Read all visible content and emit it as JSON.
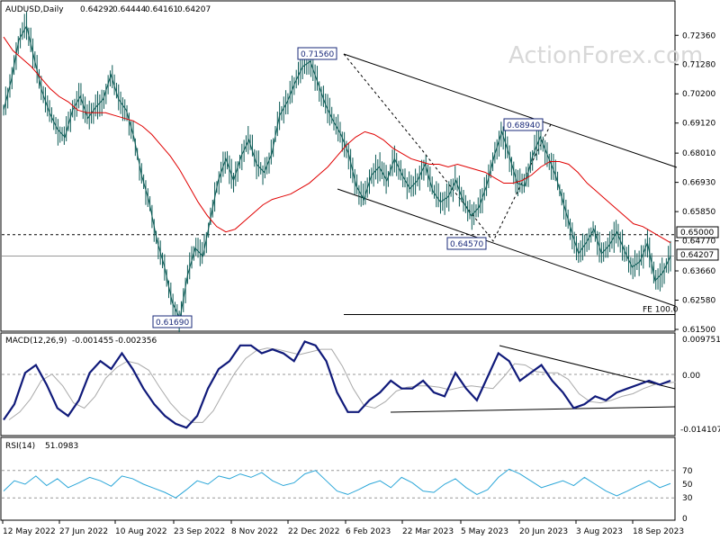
{
  "chart_data": {
    "type": "line",
    "symbol": "AUDUSD,Daily",
    "ohlc": [
      "0.64292",
      "0.64444",
      "0.64161",
      "0.64207"
    ],
    "watermark": "ActionForex.com",
    "x_labels": [
      "12 May 2022",
      "27 Jun 2022",
      "10 Aug 2022",
      "23 Sep 2022",
      "8 Nov 2022",
      "22 Dec 2022",
      "6 Feb 2023",
      "22 Mar 2023",
      "5 May 2023",
      "20 Jun 2023",
      "3 Aug 2023",
      "18 Sep 2023"
    ],
    "price_panel": {
      "y_ticks": [
        "0.72360",
        "0.71280",
        "0.70200",
        "0.69120",
        "0.68010",
        "0.66930",
        "0.65850",
        "0.64770",
        "0.63660",
        "0.62580",
        "0.61500"
      ],
      "ylim": [
        0.615,
        0.73
      ],
      "current_price": "0.64207",
      "current_value": 0.64207,
      "level_line": {
        "label": "0.65000",
        "value": 0.65
      },
      "fe_line": {
        "label": "FE 100.0",
        "value": 0.6205
      },
      "swing_labels": [
        {
          "label": "0.71560",
          "value": 0.7156
        },
        {
          "label": "0.61690",
          "value": 0.6169
        },
        {
          "label": "0.64570",
          "value": 0.6457
        },
        {
          "label": "0.68940",
          "value": 0.6894
        }
      ],
      "close_path": [
        0.696,
        0.707,
        0.722,
        0.727,
        0.715,
        0.703,
        0.695,
        0.689,
        0.686,
        0.696,
        0.701,
        0.693,
        0.697,
        0.7,
        0.709,
        0.7,
        0.696,
        0.686,
        0.672,
        0.662,
        0.648,
        0.638,
        0.625,
        0.619,
        0.635,
        0.645,
        0.642,
        0.656,
        0.67,
        0.678,
        0.67,
        0.679,
        0.685,
        0.676,
        0.673,
        0.68,
        0.694,
        0.699,
        0.706,
        0.712,
        0.714,
        0.706,
        0.698,
        0.692,
        0.687,
        0.68,
        0.668,
        0.663,
        0.672,
        0.675,
        0.67,
        0.678,
        0.672,
        0.667,
        0.67,
        0.676,
        0.666,
        0.662,
        0.664,
        0.67,
        0.662,
        0.657,
        0.66,
        0.668,
        0.679,
        0.688,
        0.679,
        0.669,
        0.668,
        0.679,
        0.686,
        0.679,
        0.672,
        0.662,
        0.652,
        0.643,
        0.647,
        0.652,
        0.643,
        0.646,
        0.651,
        0.644,
        0.638,
        0.64,
        0.647,
        0.633,
        0.636,
        0.642
      ],
      "ma_path": [
        0.723,
        0.718,
        0.715,
        0.712,
        0.708,
        0.704,
        0.701,
        0.699,
        0.696,
        0.695,
        0.695,
        0.695,
        0.694,
        0.693,
        0.692,
        0.69,
        0.687,
        0.683,
        0.679,
        0.674,
        0.668,
        0.662,
        0.657,
        0.653,
        0.651,
        0.652,
        0.655,
        0.658,
        0.661,
        0.663,
        0.664,
        0.665,
        0.667,
        0.669,
        0.672,
        0.675,
        0.679,
        0.683,
        0.686,
        0.688,
        0.687,
        0.685,
        0.682,
        0.68,
        0.678,
        0.677,
        0.676,
        0.676,
        0.675,
        0.676,
        0.675,
        0.674,
        0.673,
        0.671,
        0.669,
        0.669,
        0.67,
        0.672,
        0.675,
        0.677,
        0.677,
        0.676,
        0.673,
        0.669,
        0.666,
        0.663,
        0.66,
        0.657,
        0.654,
        0.653,
        0.651,
        0.649,
        0.647
      ]
    },
    "macd_panel": {
      "label": "MACD(12,26,9)",
      "values": [
        "-0.001455",
        "-0.002356"
      ],
      "y_ticks": [
        "0.009751",
        "0.00",
        "-0.014107"
      ],
      "ylim": [
        -0.0141,
        0.0098
      ],
      "path": [
        -0.011,
        -0.007,
        0.001,
        0.003,
        -0.002,
        -0.008,
        -0.01,
        -0.006,
        0.001,
        0.004,
        0.002,
        0.006,
        0.002,
        -0.003,
        -0.007,
        -0.01,
        -0.012,
        -0.013,
        -0.01,
        -0.003,
        0.002,
        0.004,
        0.008,
        0.008,
        0.006,
        0.007,
        0.006,
        0.004,
        0.009,
        0.008,
        0.004,
        -0.004,
        -0.009,
        -0.009,
        -0.006,
        -0.004,
        -0.001,
        -0.003,
        -0.003,
        -0.001,
        -0.004,
        -0.005,
        0.001,
        -0.003,
        -0.006,
        0.0,
        0.006,
        0.004,
        -0.001,
        0.001,
        0.003,
        -0.001,
        -0.004,
        -0.008,
        -0.007,
        -0.005,
        -0.006,
        -0.004,
        -0.003,
        -0.002,
        -0.001,
        -0.002,
        -0.001
      ]
    },
    "rsi_panel": {
      "label": "RSI(14)",
      "value": "51.0983",
      "y_ticks": [
        "70",
        "50",
        "30",
        "0"
      ],
      "ylim": [
        0,
        100
      ],
      "path": [
        40,
        55,
        50,
        62,
        48,
        58,
        45,
        52,
        60,
        55,
        47,
        62,
        58,
        50,
        44,
        38,
        30,
        42,
        55,
        50,
        62,
        58,
        65,
        60,
        67,
        55,
        48,
        52,
        65,
        70,
        55,
        40,
        35,
        42,
        50,
        55,
        45,
        60,
        52,
        40,
        38,
        50,
        58,
        45,
        35,
        42,
        60,
        72,
        65,
        55,
        45,
        50,
        55,
        48,
        60,
        50,
        40,
        33,
        40,
        48,
        55,
        45,
        51
      ]
    }
  }
}
